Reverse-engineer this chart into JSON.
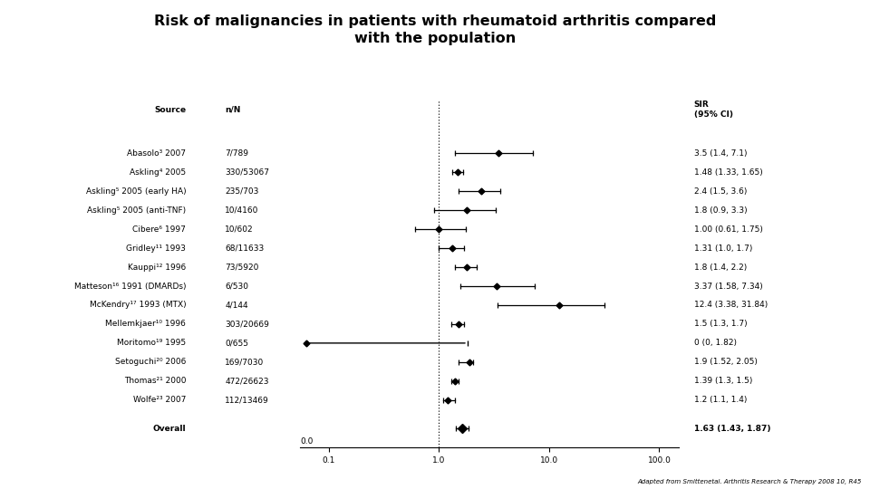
{
  "title": "Risk of malignancies in patients with rheumatoid arthritis compared\nwith the population",
  "footer": "Adapted from Smittenetal. Arthritis Research & Therapy 2008 10, R45",
  "sources": [
    "Abasolo³ 2007",
    "Askling⁴ 2005",
    "Askling⁵ 2005 (early HA)",
    "Askling⁵ 2005 (anti-TNF)",
    "Cibere⁶ 1997",
    "Gridley¹¹ 1993",
    "Kauppi¹² 1996",
    "Matteson¹⁶ 1991 (DMARDs)",
    "McKendry¹⁷ 1993 (MTX)",
    "Mellemkjaer¹⁰ 1996",
    "Moritomo¹⁹ 1995",
    "Setoguchi²⁰ 2006",
    "Thomas²¹ 2000",
    "Wolfe²³ 2007",
    "Overall"
  ],
  "nN": [
    "7/789",
    "330/53067",
    "235/703",
    "10/4160",
    "10/602",
    "68/11633",
    "73/5920",
    "6/530",
    "4/144",
    "303/20669",
    "0/655",
    "169/7030",
    "472/26623",
    "112/13469",
    ""
  ],
  "sir": [
    3.5,
    1.48,
    2.4,
    1.8,
    1.0,
    1.31,
    1.8,
    3.37,
    12.4,
    1.5,
    0.001,
    1.9,
    1.39,
    1.2,
    1.63
  ],
  "ci_lo": [
    1.4,
    1.33,
    1.5,
    0.9,
    0.61,
    1.0,
    1.4,
    1.58,
    3.38,
    1.3,
    0.001,
    1.52,
    1.3,
    1.1,
    1.43
  ],
  "ci_hi": [
    7.1,
    1.65,
    3.6,
    3.3,
    1.75,
    1.7,
    2.2,
    7.34,
    31.84,
    1.7,
    1.82,
    2.05,
    1.5,
    1.4,
    1.87
  ],
  "sir_labels": [
    "3.5 (1.4, 7.1)",
    "1.48 (1.33, 1.65)",
    "2.4 (1.5, 3.6)",
    "1.8 (0.9, 3.3)",
    "1.00 (0.61, 1.75)",
    "1.31 (1.0, 1.7)",
    "1.8 (1.4, 2.2)",
    "3.37 (1.58, 7.34)",
    "12.4 (3.38, 31.84)",
    "1.5 (1.3, 1.7)",
    "0 (0, 1.82)",
    "1.9 (1.52, 2.05)",
    "1.39 (1.3, 1.5)",
    "1.2 (1.1, 1.4)",
    "1.63 (1.43, 1.87)"
  ],
  "is_overall": [
    false,
    false,
    false,
    false,
    false,
    false,
    false,
    false,
    false,
    false,
    false,
    false,
    false,
    false,
    true
  ],
  "background_color": "#ffffff",
  "font_size": 6.5,
  "title_font_size": 11.5
}
